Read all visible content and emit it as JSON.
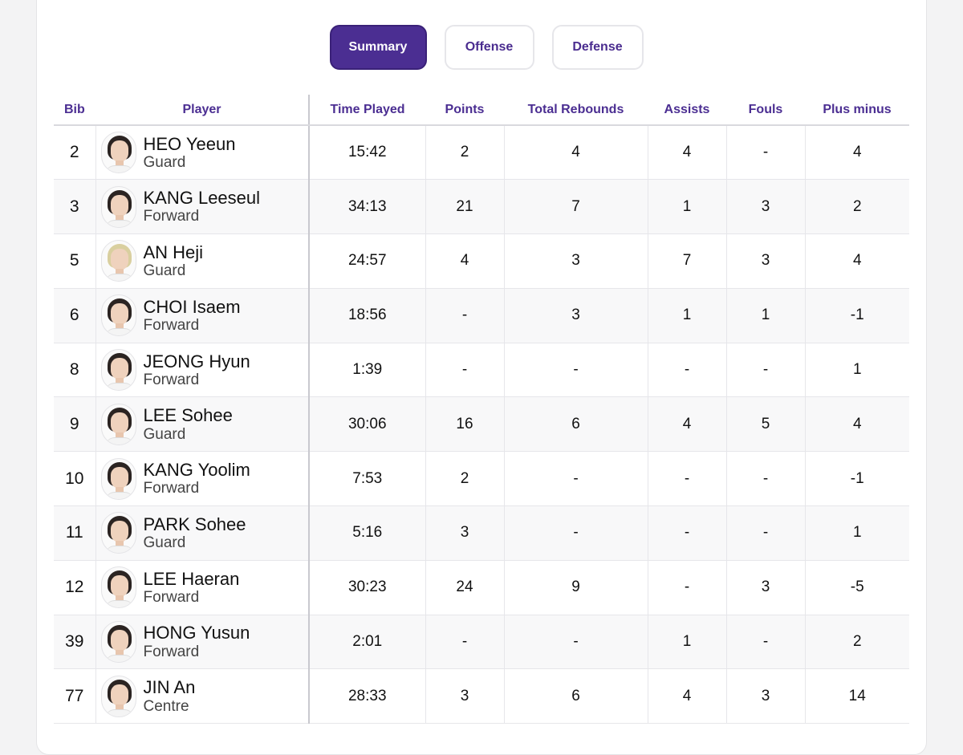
{
  "tabs": [
    {
      "label": "Summary",
      "active": true
    },
    {
      "label": "Offense",
      "active": false
    },
    {
      "label": "Defense",
      "active": false
    }
  ],
  "columns": [
    "Bib",
    "Player",
    "Time Played",
    "Points",
    "Total Rebounds",
    "Assists",
    "Fouls",
    "Plus minus"
  ],
  "rows": [
    {
      "bib": "2",
      "name": "HEO Yeeun",
      "position": "Guard",
      "time": "15:42",
      "points": "2",
      "rebounds": "4",
      "assists": "4",
      "fouls": "-",
      "plus_minus": "4"
    },
    {
      "bib": "3",
      "name": "KANG Leeseul",
      "position": "Forward",
      "time": "34:13",
      "points": "21",
      "rebounds": "7",
      "assists": "1",
      "fouls": "3",
      "plus_minus": "2"
    },
    {
      "bib": "5",
      "name": "AN Heji",
      "position": "Guard",
      "time": "24:57",
      "points": "4",
      "rebounds": "3",
      "assists": "7",
      "fouls": "3",
      "plus_minus": "4"
    },
    {
      "bib": "6",
      "name": "CHOI Isaem",
      "position": "Forward",
      "time": "18:56",
      "points": "-",
      "rebounds": "3",
      "assists": "1",
      "fouls": "1",
      "plus_minus": "-1"
    },
    {
      "bib": "8",
      "name": "JEONG Hyun",
      "position": "Forward",
      "time": "1:39",
      "points": "-",
      "rebounds": "-",
      "assists": "-",
      "fouls": "-",
      "plus_minus": "1"
    },
    {
      "bib": "9",
      "name": "LEE Sohee",
      "position": "Guard",
      "time": "30:06",
      "points": "16",
      "rebounds": "6",
      "assists": "4",
      "fouls": "5",
      "plus_minus": "4"
    },
    {
      "bib": "10",
      "name": "KANG Yoolim",
      "position": "Forward",
      "time": "7:53",
      "points": "2",
      "rebounds": "-",
      "assists": "-",
      "fouls": "-",
      "plus_minus": "-1"
    },
    {
      "bib": "11",
      "name": "PARK Sohee",
      "position": "Guard",
      "time": "5:16",
      "points": "3",
      "rebounds": "-",
      "assists": "-",
      "fouls": "-",
      "plus_minus": "1"
    },
    {
      "bib": "12",
      "name": "LEE Haeran",
      "position": "Forward",
      "time": "30:23",
      "points": "24",
      "rebounds": "9",
      "assists": "-",
      "fouls": "3",
      "plus_minus": "-5"
    },
    {
      "bib": "39",
      "name": "HONG Yusun",
      "position": "Forward",
      "time": "2:01",
      "points": "-",
      "rebounds": "-",
      "assists": "1",
      "fouls": "-",
      "plus_minus": "2"
    },
    {
      "bib": "77",
      "name": "JIN An",
      "position": "Centre",
      "time": "28:33",
      "points": "3",
      "rebounds": "6",
      "assists": "4",
      "fouls": "3",
      "plus_minus": "14"
    }
  ],
  "colors": {
    "accent": "#4b2e92",
    "header_text": "#4b2e92",
    "row_alt": "#f8f8f9"
  }
}
